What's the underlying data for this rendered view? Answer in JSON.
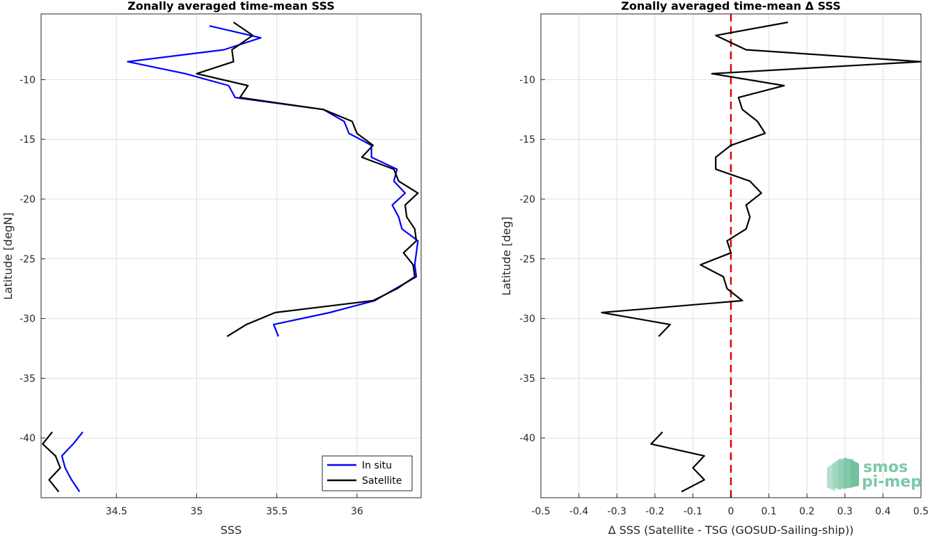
{
  "chart_data": [
    {
      "type": "line",
      "title": "Zonally averaged time-mean SSS",
      "xlabel": "SSS",
      "ylabel": "Latitude [degN]",
      "xlim": [
        34.03,
        36.4
      ],
      "ylim": [
        -45,
        -4.5
      ],
      "xticks": [
        34.5,
        35,
        35.5,
        36
      ],
      "yticks": [
        -10,
        -15,
        -20,
        -25,
        -30,
        -35,
        -40
      ],
      "grid": true,
      "legend": "bottom-right",
      "series": [
        {
          "name": "In situ",
          "color": "#0000ff",
          "segments": [
            [
              [
                35.08,
                -5.5
              ],
              [
                35.4,
                -6.5
              ],
              [
                35.17,
                -7.5
              ],
              [
                34.57,
                -8.5
              ],
              [
                34.93,
                -9.5
              ],
              [
                35.2,
                -10.5
              ],
              [
                35.24,
                -11.5
              ],
              [
                35.79,
                -12.5
              ],
              [
                35.92,
                -13.5
              ],
              [
                35.95,
                -14.5
              ],
              [
                36.09,
                -15.5
              ],
              [
                36.09,
                -16.5
              ],
              [
                36.25,
                -17.5
              ],
              [
                36.23,
                -18.5
              ],
              [
                36.3,
                -19.5
              ],
              [
                36.22,
                -20.5
              ],
              [
                36.26,
                -21.5
              ],
              [
                36.28,
                -22.5
              ],
              [
                36.38,
                -23.5
              ],
              [
                36.37,
                -24.5
              ],
              [
                36.36,
                -25.5
              ],
              [
                36.37,
                -26.5
              ],
              [
                36.24,
                -27.5
              ],
              [
                36.11,
                -28.5
              ],
              [
                35.83,
                -29.5
              ],
              [
                35.48,
                -30.5
              ],
              [
                35.51,
                -31.5
              ]
            ],
            [
              [
                34.29,
                -39.5
              ],
              [
                34.23,
                -40.5
              ],
              [
                34.16,
                -41.5
              ],
              [
                34.18,
                -42.5
              ],
              [
                34.22,
                -43.5
              ],
              [
                34.27,
                -44.5
              ]
            ]
          ]
        },
        {
          "name": "Satellite",
          "color": "#000000",
          "segments": [
            [
              [
                35.23,
                -5.2
              ],
              [
                35.35,
                -6.3
              ],
              [
                35.22,
                -7.5
              ],
              [
                35.23,
                -8.5
              ],
              [
                35.0,
                -9.5
              ],
              [
                35.32,
                -10.5
              ],
              [
                35.27,
                -11.5
              ],
              [
                35.79,
                -12.5
              ],
              [
                35.97,
                -13.5
              ],
              [
                36.0,
                -14.5
              ],
              [
                36.1,
                -15.5
              ],
              [
                36.03,
                -16.5
              ],
              [
                36.23,
                -17.5
              ],
              [
                36.26,
                -18.5
              ],
              [
                36.38,
                -19.5
              ],
              [
                36.3,
                -20.5
              ],
              [
                36.31,
                -21.5
              ],
              [
                36.36,
                -22.5
              ],
              [
                36.37,
                -23.5
              ],
              [
                36.29,
                -24.5
              ],
              [
                36.35,
                -25.5
              ],
              [
                36.36,
                -26.5
              ],
              [
                36.25,
                -27.5
              ],
              [
                36.1,
                -28.5
              ],
              [
                35.49,
                -29.5
              ],
              [
                35.31,
                -30.5
              ],
              [
                35.19,
                -31.5
              ]
            ],
            [
              [
                34.1,
                -39.5
              ],
              [
                34.04,
                -40.5
              ],
              [
                34.12,
                -41.5
              ],
              [
                34.15,
                -42.5
              ],
              [
                34.08,
                -43.5
              ],
              [
                34.14,
                -44.5
              ]
            ]
          ]
        }
      ]
    },
    {
      "type": "line",
      "title": "Zonally averaged time-mean Δ SSS",
      "xlabel": "Δ SSS (Satellite - TSG (GOSUD-Sailing-ship))",
      "ylabel": "Latitude [deg]",
      "xlim": [
        -0.5,
        0.5
      ],
      "ylim": [
        -45,
        -4.5
      ],
      "xticks": [
        -0.5,
        -0.4,
        -0.3,
        -0.2,
        -0.1,
        0,
        0.1,
        0.2,
        0.3,
        0.4,
        0.5
      ],
      "yticks": [
        -10,
        -15,
        -20,
        -25,
        -30,
        -35,
        -40
      ],
      "grid": true,
      "reference_line": {
        "x": 0,
        "color": "#e00000",
        "style": "dashed"
      },
      "series": [
        {
          "color": "#000000",
          "segments": [
            [
              [
                0.15,
                -5.2
              ],
              [
                -0.04,
                -6.3
              ],
              [
                0.04,
                -7.5
              ],
              [
                0.5,
                -8.5
              ],
              [
                -0.05,
                -9.5
              ],
              [
                0.14,
                -10.5
              ],
              [
                0.02,
                -11.5
              ],
              [
                0.03,
                -12.5
              ],
              [
                0.07,
                -13.5
              ],
              [
                0.09,
                -14.5
              ],
              [
                0.0,
                -15.5
              ],
              [
                -0.04,
                -16.5
              ],
              [
                -0.04,
                -17.5
              ],
              [
                0.05,
                -18.5
              ],
              [
                0.08,
                -19.5
              ],
              [
                0.04,
                -20.5
              ],
              [
                0.05,
                -21.5
              ],
              [
                0.04,
                -22.5
              ],
              [
                -0.01,
                -23.5
              ],
              [
                0.0,
                -24.5
              ],
              [
                -0.08,
                -25.5
              ],
              [
                -0.02,
                -26.5
              ],
              [
                -0.01,
                -27.5
              ],
              [
                0.03,
                -28.5
              ],
              [
                -0.34,
                -29.5
              ],
              [
                -0.16,
                -30.5
              ],
              [
                -0.19,
                -31.5
              ]
            ],
            [
              [
                -0.18,
                -39.5
              ],
              [
                -0.21,
                -40.5
              ],
              [
                -0.07,
                -41.5
              ],
              [
                -0.1,
                -42.5
              ],
              [
                -0.07,
                -43.5
              ],
              [
                -0.13,
                -44.5
              ]
            ]
          ]
        }
      ]
    }
  ],
  "legend": {
    "items": [
      {
        "label": "In situ",
        "color": "#0000ff"
      },
      {
        "label": "Satellite",
        "color": "#000000"
      }
    ]
  },
  "logo": {
    "line1": "smos",
    "line2": "pi-mep",
    "color": "#7cc9a8"
  }
}
